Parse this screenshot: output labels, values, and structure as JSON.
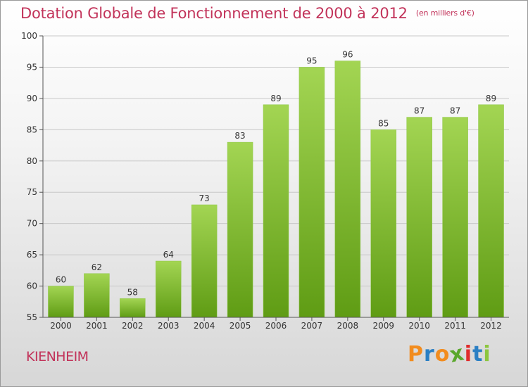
{
  "header": {
    "title": "Dotation Globale de Fonctionnement de 2000 à 2012",
    "subtitle": "(en milliers d'€)"
  },
  "footer": {
    "commune": "KIENHEIM",
    "logo_text": "Proxiti",
    "logo_colors": [
      "#f28c1e",
      "#2a7fc4",
      "#f28c1e",
      "#5aa72c",
      "#e02b2b",
      "#2a7fc4",
      "#8cc63f"
    ]
  },
  "chart_data": {
    "type": "bar",
    "title": "Dotation Globale de Fonctionnement de 2000 à 2012",
    "subtitle": "(en milliers d'€)",
    "xlabel": "",
    "ylabel": "",
    "categories": [
      "2000",
      "2001",
      "2002",
      "2003",
      "2004",
      "2005",
      "2006",
      "2007",
      "2008",
      "2009",
      "2010",
      "2011",
      "2012"
    ],
    "values": [
      60,
      62,
      58,
      64,
      73,
      83,
      89,
      95,
      96,
      85,
      87,
      87,
      89
    ],
    "ylim": [
      55,
      100
    ],
    "yticks": [
      55,
      60,
      65,
      70,
      75,
      80,
      85,
      90,
      95,
      100
    ],
    "grid": true,
    "legend": "none",
    "bar_color_top": "#a3d553",
    "bar_color_bottom": "#5f9c14",
    "grid_color": "#c8c8c8"
  }
}
